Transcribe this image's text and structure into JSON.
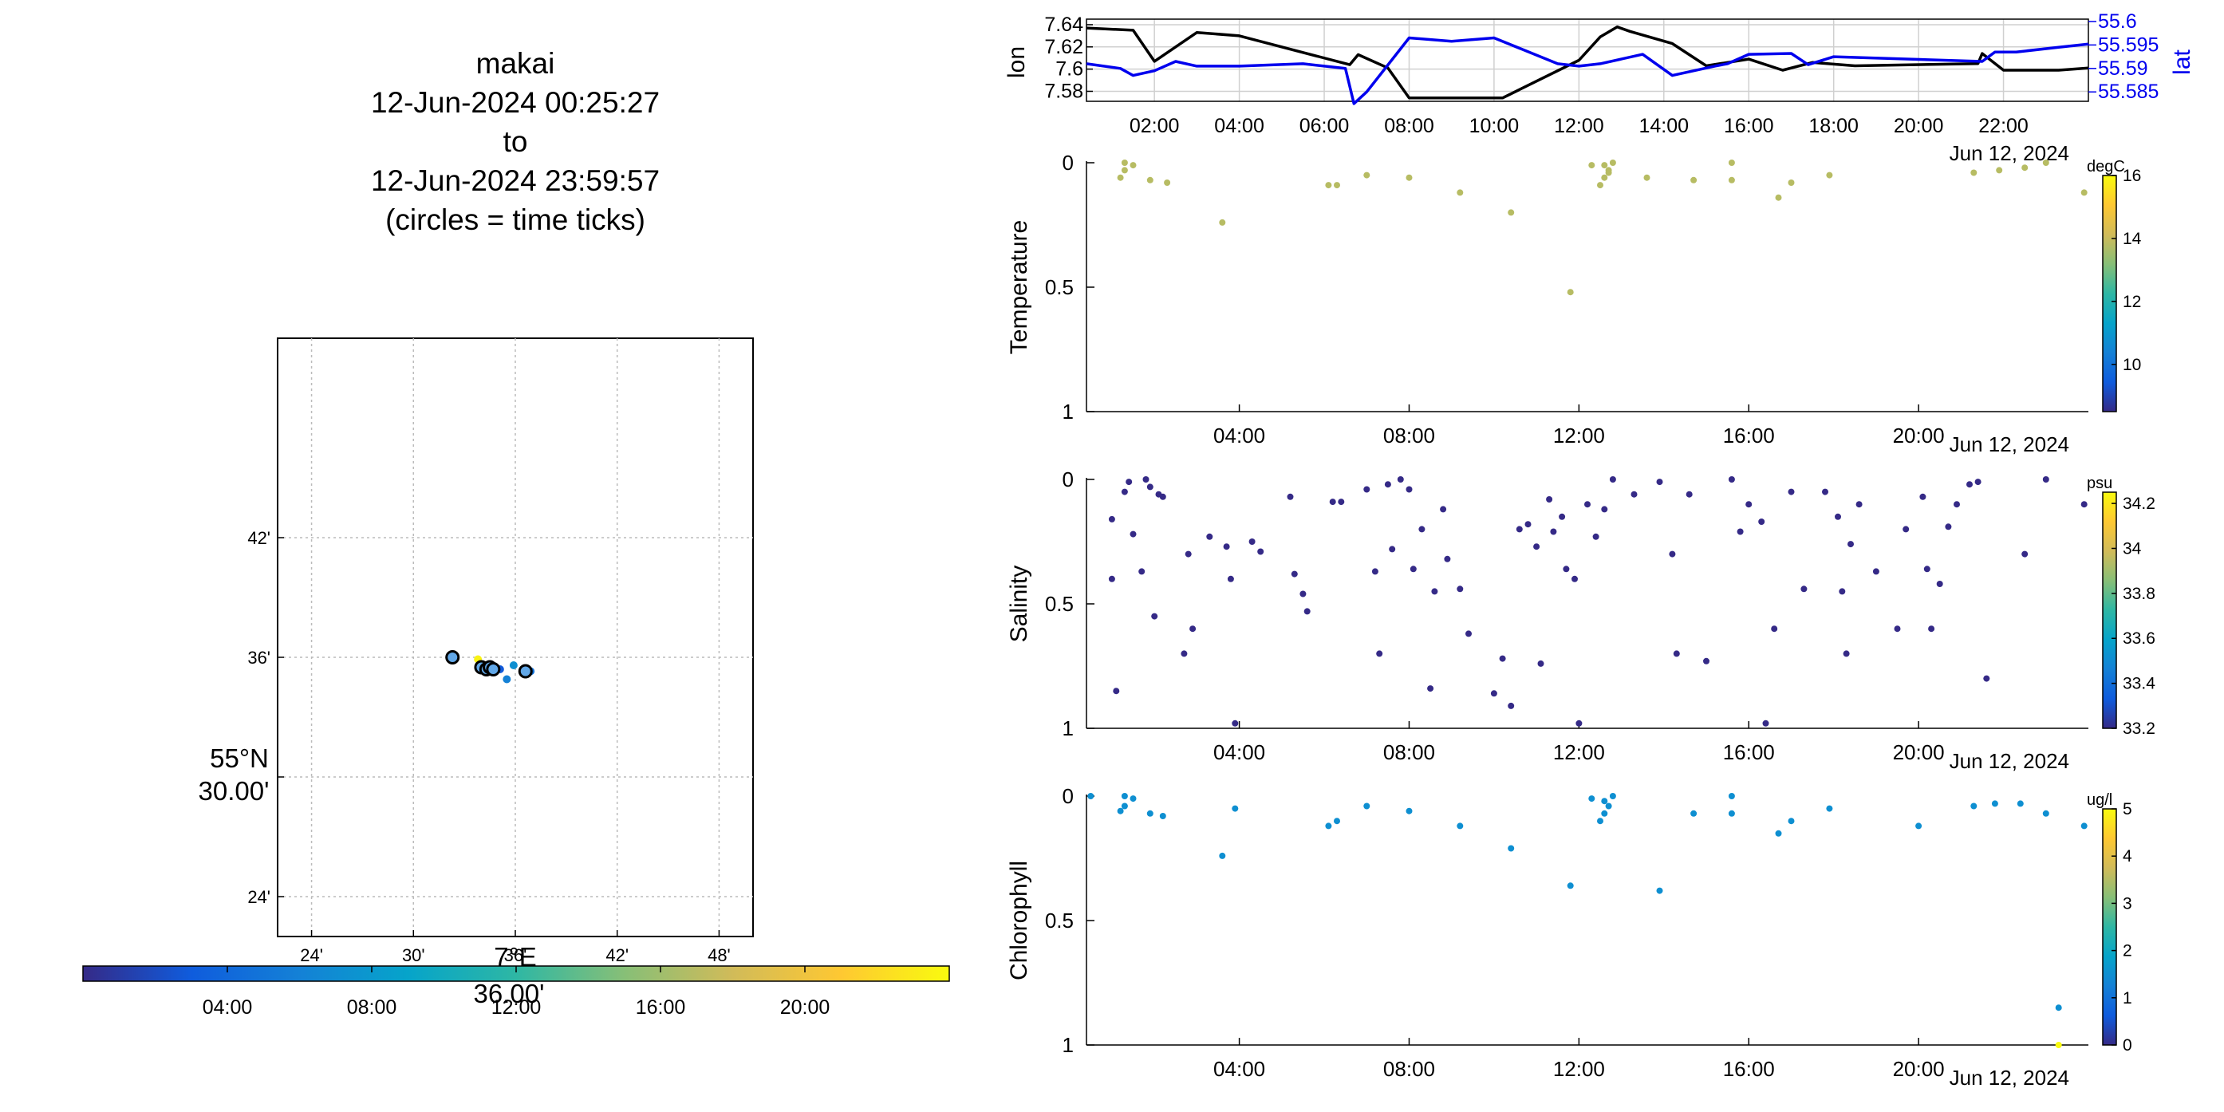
{
  "header": {
    "platform": "makai",
    "start": "12-Jun-2024 00:25:27",
    "to": "to",
    "end": "12-Jun-2024 23:59:57",
    "note": "(circles = time ticks)"
  },
  "colors": {
    "lon_line": "#000000",
    "lat_line": "#0000ee",
    "grid": "#c8c8c8",
    "parula": [
      "#352a87",
      "#0f5cdd",
      "#1481d6",
      "#06a4ca",
      "#2eb7a4",
      "#87bf77",
      "#d1bb59",
      "#fec832",
      "#f9fb0e"
    ]
  },
  "chart_data": [
    {
      "type": "scatter",
      "id": "map",
      "title": "",
      "lat_label": [
        "55°N",
        "30.00'"
      ],
      "lon_label": [
        "7°E",
        "36.00'"
      ],
      "x_ticks": [
        "24'",
        "30'",
        "36'",
        "42'",
        "48'"
      ],
      "y_ticks": [
        "42'",
        "36'",
        "24'"
      ],
      "grid": true,
      "xlim": [
        22,
        50
      ],
      "ylim": [
        22,
        52
      ],
      "track_points": [
        {
          "lon": 32.3,
          "lat": 36.0,
          "t": 0.42
        },
        {
          "lon": 33.8,
          "lat": 35.9,
          "t": 0.98
        },
        {
          "lon": 34.3,
          "lat": 35.6,
          "t": 0.5
        },
        {
          "lon": 34.6,
          "lat": 35.4,
          "t": 0.55
        },
        {
          "lon": 35.1,
          "lat": 35.4,
          "t": 0.12
        },
        {
          "lon": 35.9,
          "lat": 35.6,
          "t": 0.3
        },
        {
          "lon": 36.5,
          "lat": 35.4,
          "t": 0.35
        },
        {
          "lon": 36.9,
          "lat": 35.3,
          "t": 0.2
        },
        {
          "lon": 35.5,
          "lat": 34.9,
          "t": 0.25
        }
      ],
      "time_tick_circles": [
        {
          "lon": 32.3,
          "lat": 36.0
        },
        {
          "lon": 34.0,
          "lat": 35.5
        },
        {
          "lon": 34.3,
          "lat": 35.4
        },
        {
          "lon": 34.5,
          "lat": 35.5
        },
        {
          "lon": 34.7,
          "lat": 35.4
        },
        {
          "lon": 36.6,
          "lat": 35.3
        }
      ],
      "colorbar": {
        "ticks": [
          "04:00",
          "08:00",
          "12:00",
          "16:00",
          "20:00"
        ],
        "range_hours": [
          0,
          24
        ]
      }
    },
    {
      "type": "line",
      "id": "position",
      "xlabel": "",
      "date_label": "Jun 12, 2024",
      "x_ticks": [
        "02:00",
        "04:00",
        "06:00",
        "08:00",
        "10:00",
        "12:00",
        "14:00",
        "16:00",
        "18:00",
        "20:00",
        "22:00"
      ],
      "xlim_hours": [
        0.4,
        24.0
      ],
      "left_axis": {
        "label": "lon",
        "ticks": [
          "7.64",
          "7.62",
          "7.6",
          "7.58"
        ],
        "ylim": [
          7.571,
          7.645
        ]
      },
      "right_axis": {
        "label": "lat",
        "ticks": [
          "55.6",
          "55.595",
          "55.59",
          "55.585"
        ],
        "ylim": [
          55.583,
          55.6005
        ]
      },
      "series": [
        {
          "name": "lon",
          "axis": "left",
          "x": [
            0.4,
            1.5,
            2.0,
            3.0,
            4.0,
            6.6,
            6.8,
            7.5,
            8.0,
            10.2,
            12.0,
            12.5,
            12.9,
            13.2,
            14.2,
            15.0,
            16.0,
            16.8,
            17.5,
            18.5,
            21.4,
            21.5,
            22.0,
            23.3,
            24.0
          ],
          "y": [
            7.637,
            7.635,
            7.607,
            7.633,
            7.63,
            7.604,
            7.613,
            7.601,
            7.574,
            7.574,
            7.608,
            7.629,
            7.638,
            7.634,
            7.623,
            7.603,
            7.609,
            7.599,
            7.606,
            7.603,
            7.605,
            7.614,
            7.599,
            7.599,
            7.601
          ]
        },
        {
          "name": "lat",
          "axis": "right",
          "x": [
            0.4,
            1.2,
            1.5,
            2.0,
            2.5,
            3.0,
            4.0,
            5.5,
            6.5,
            6.7,
            7.0,
            8.0,
            9.0,
            10.0,
            11.5,
            12.0,
            12.5,
            13.5,
            14.2,
            15.2,
            15.5,
            16.0,
            17.0,
            17.4,
            18.0,
            21.5,
            21.8,
            22.3,
            23.3,
            24.0
          ],
          "y": [
            55.591,
            55.59,
            55.5885,
            55.5895,
            55.5915,
            55.5905,
            55.5905,
            55.591,
            55.59,
            55.5825,
            55.585,
            55.5965,
            55.5958,
            55.5965,
            55.591,
            55.5905,
            55.591,
            55.593,
            55.5885,
            55.5905,
            55.591,
            55.593,
            55.5932,
            55.5908,
            55.5925,
            55.5915,
            55.5935,
            55.5935,
            55.5945,
            55.5952
          ]
        }
      ],
      "grid": true
    },
    {
      "type": "scatter",
      "id": "temperature",
      "ylabel": "Temperature",
      "units": "degC",
      "date_label": "Jun 12, 2024",
      "x_ticks": [
        "04:00",
        "08:00",
        "12:00",
        "16:00",
        "20:00"
      ],
      "xlim_hours": [
        0.4,
        24.0
      ],
      "y_ticks": [
        "0",
        "0.5",
        "1"
      ],
      "ylim": [
        0,
        1
      ],
      "colorbar": {
        "ticks": [
          "16",
          "14",
          "12",
          "10"
        ],
        "clim": [
          8.5,
          16
        ]
      },
      "points": [
        [
          1.3,
          0.0,
          13.8
        ],
        [
          1.5,
          0.01,
          13.8
        ],
        [
          1.3,
          0.03,
          13.8
        ],
        [
          1.2,
          0.06,
          13.8
        ],
        [
          1.9,
          0.07,
          13.8
        ],
        [
          2.3,
          0.08,
          13.8
        ],
        [
          3.6,
          0.24,
          13.8
        ],
        [
          6.1,
          0.09,
          13.8
        ],
        [
          6.3,
          0.09,
          13.8
        ],
        [
          7.0,
          0.05,
          13.8
        ],
        [
          8.0,
          0.06,
          13.8
        ],
        [
          9.2,
          0.12,
          13.8
        ],
        [
          10.4,
          0.2,
          13.8
        ],
        [
          11.8,
          0.52,
          13.8
        ],
        [
          12.3,
          0.01,
          13.8
        ],
        [
          12.6,
          0.01,
          13.8
        ],
        [
          12.8,
          0.0,
          13.8
        ],
        [
          12.7,
          0.03,
          13.8
        ],
        [
          12.6,
          0.06,
          13.8
        ],
        [
          12.5,
          0.09,
          13.8
        ],
        [
          12.7,
          0.04,
          13.8
        ],
        [
          13.6,
          0.06,
          13.8
        ],
        [
          14.7,
          0.07,
          13.8
        ],
        [
          15.6,
          0.0,
          13.8
        ],
        [
          15.6,
          0.07,
          13.8
        ],
        [
          16.7,
          0.14,
          13.8
        ],
        [
          17.0,
          0.08,
          13.8
        ],
        [
          17.9,
          0.05,
          13.8
        ],
        [
          21.3,
          0.04,
          13.8
        ],
        [
          21.9,
          0.03,
          13.8
        ],
        [
          22.5,
          0.02,
          13.8
        ],
        [
          23.0,
          0.0,
          13.8
        ],
        [
          23.9,
          0.12,
          13.8
        ]
      ]
    },
    {
      "type": "scatter",
      "id": "salinity",
      "ylabel": "Salinity",
      "units": "psu",
      "date_label": "Jun 12, 2024",
      "x_ticks": [
        "04:00",
        "08:00",
        "12:00",
        "16:00",
        "20:00"
      ],
      "xlim_hours": [
        0.4,
        24.0
      ],
      "y_ticks": [
        "0",
        "0.5",
        "1"
      ],
      "ylim": [
        0,
        1
      ],
      "colorbar": {
        "ticks": [
          "34.2",
          "34",
          "33.8",
          "33.6",
          "33.4",
          "33.2"
        ],
        "clim": [
          33.2,
          34.25
        ]
      },
      "points": [
        [
          1.0,
          0.16,
          33.2
        ],
        [
          1.0,
          0.4,
          33.2
        ],
        [
          1.1,
          0.85,
          33.2
        ],
        [
          1.3,
          0.05,
          33.2
        ],
        [
          1.4,
          0.01,
          33.2
        ],
        [
          1.5,
          0.22,
          33.2
        ],
        [
          1.7,
          0.37,
          33.2
        ],
        [
          1.8,
          0.0,
          33.2
        ],
        [
          1.9,
          0.03,
          33.2
        ],
        [
          2.0,
          0.55,
          33.2
        ],
        [
          2.1,
          0.06,
          33.2
        ],
        [
          2.2,
          0.07,
          33.2
        ],
        [
          2.7,
          0.7,
          33.2
        ],
        [
          2.8,
          0.3,
          33.2
        ],
        [
          2.9,
          0.6,
          33.2
        ],
        [
          3.3,
          0.23,
          33.2
        ],
        [
          3.7,
          0.27,
          33.2
        ],
        [
          3.8,
          0.4,
          33.2
        ],
        [
          3.9,
          0.98,
          33.2
        ],
        [
          4.3,
          0.25,
          33.2
        ],
        [
          4.5,
          0.29,
          33.2
        ],
        [
          5.2,
          0.07,
          33.2
        ],
        [
          5.3,
          0.38,
          33.2
        ],
        [
          5.5,
          0.46,
          33.2
        ],
        [
          5.6,
          0.53,
          33.2
        ],
        [
          6.2,
          0.09,
          33.2
        ],
        [
          6.4,
          0.09,
          33.2
        ],
        [
          7.0,
          0.04,
          33.2
        ],
        [
          7.2,
          0.37,
          33.2
        ],
        [
          7.3,
          0.7,
          33.2
        ],
        [
          7.5,
          0.02,
          33.2
        ],
        [
          7.6,
          0.28,
          33.2
        ],
        [
          7.8,
          0.0,
          33.2
        ],
        [
          8.0,
          0.04,
          33.2
        ],
        [
          8.1,
          0.36,
          33.2
        ],
        [
          8.3,
          0.2,
          33.2
        ],
        [
          8.5,
          0.84,
          33.2
        ],
        [
          8.6,
          0.45,
          33.2
        ],
        [
          8.8,
          0.12,
          33.2
        ],
        [
          8.9,
          0.32,
          33.2
        ],
        [
          9.2,
          0.44,
          33.2
        ],
        [
          9.4,
          0.62,
          33.2
        ],
        [
          10.0,
          0.86,
          33.2
        ],
        [
          10.2,
          0.72,
          33.2
        ],
        [
          10.4,
          0.91,
          33.2
        ],
        [
          10.6,
          0.2,
          33.2
        ],
        [
          10.8,
          0.18,
          33.2
        ],
        [
          11.0,
          0.27,
          33.2
        ],
        [
          11.1,
          0.74,
          33.2
        ],
        [
          11.3,
          0.08,
          33.2
        ],
        [
          11.4,
          0.21,
          33.2
        ],
        [
          11.6,
          0.15,
          33.2
        ],
        [
          11.7,
          0.36,
          33.2
        ],
        [
          11.9,
          0.4,
          33.2
        ],
        [
          12.0,
          0.98,
          33.2
        ],
        [
          12.2,
          0.1,
          33.2
        ],
        [
          12.4,
          0.23,
          33.2
        ],
        [
          12.6,
          0.12,
          33.2
        ],
        [
          12.8,
          0.0,
          33.2
        ],
        [
          13.3,
          0.06,
          33.2
        ],
        [
          13.9,
          0.01,
          33.2
        ],
        [
          14.2,
          0.3,
          33.2
        ],
        [
          14.3,
          0.7,
          33.2
        ],
        [
          14.6,
          0.06,
          33.2
        ],
        [
          15.0,
          0.73,
          33.2
        ],
        [
          15.6,
          0.0,
          33.2
        ],
        [
          15.8,
          0.21,
          33.2
        ],
        [
          16.0,
          0.1,
          33.2
        ],
        [
          16.3,
          0.17,
          33.2
        ],
        [
          16.4,
          0.98,
          33.2
        ],
        [
          16.6,
          0.6,
          33.2
        ],
        [
          17.0,
          0.05,
          33.2
        ],
        [
          17.3,
          0.44,
          33.2
        ],
        [
          17.8,
          0.05,
          33.2
        ],
        [
          18.1,
          0.15,
          33.2
        ],
        [
          18.2,
          0.45,
          33.2
        ],
        [
          18.3,
          0.7,
          33.2
        ],
        [
          18.4,
          0.26,
          33.2
        ],
        [
          18.6,
          0.1,
          33.2
        ],
        [
          19.0,
          0.37,
          33.2
        ],
        [
          19.5,
          0.6,
          33.2
        ],
        [
          19.7,
          0.2,
          33.2
        ],
        [
          20.1,
          0.07,
          33.2
        ],
        [
          20.2,
          0.36,
          33.2
        ],
        [
          20.3,
          0.6,
          33.2
        ],
        [
          20.5,
          0.42,
          33.2
        ],
        [
          20.7,
          0.19,
          33.2
        ],
        [
          20.9,
          0.1,
          33.2
        ],
        [
          21.2,
          0.02,
          33.2
        ],
        [
          21.4,
          0.01,
          33.2
        ],
        [
          21.6,
          0.8,
          33.2
        ],
        [
          22.5,
          0.3,
          33.2
        ],
        [
          23.0,
          0.0,
          33.2
        ],
        [
          23.9,
          0.1,
          33.2
        ]
      ]
    },
    {
      "type": "scatter",
      "id": "chlorophyll",
      "ylabel": "Chlorophyll",
      "units": "ug/l",
      "date_label": "Jun 12, 2024",
      "x_ticks": [
        "04:00",
        "08:00",
        "12:00",
        "16:00",
        "20:00"
      ],
      "xlim_hours": [
        0.4,
        24.0
      ],
      "y_ticks": [
        "0",
        "0.5",
        "1"
      ],
      "ylim": [
        0,
        1
      ],
      "colorbar": {
        "ticks": [
          "5",
          "4",
          "3",
          "2",
          "1",
          "0"
        ],
        "clim": [
          0,
          5
        ]
      },
      "points": [
        [
          0.5,
          0.0,
          1.5
        ],
        [
          1.3,
          0.0,
          1.5
        ],
        [
          1.5,
          0.01,
          1.5
        ],
        [
          1.3,
          0.04,
          1.5
        ],
        [
          1.2,
          0.06,
          1.5
        ],
        [
          1.9,
          0.07,
          1.5
        ],
        [
          2.2,
          0.08,
          1.5
        ],
        [
          3.6,
          0.24,
          1.5
        ],
        [
          3.9,
          0.05,
          1.5
        ],
        [
          6.1,
          0.12,
          1.5
        ],
        [
          6.3,
          0.1,
          1.5
        ],
        [
          7.0,
          0.04,
          1.5
        ],
        [
          8.0,
          0.06,
          1.5
        ],
        [
          9.2,
          0.12,
          1.5
        ],
        [
          10.4,
          0.21,
          1.5
        ],
        [
          11.8,
          0.36,
          1.5
        ],
        [
          12.3,
          0.01,
          1.5
        ],
        [
          12.6,
          0.02,
          1.5
        ],
        [
          12.8,
          0.0,
          1.5
        ],
        [
          12.7,
          0.04,
          1.5
        ],
        [
          12.6,
          0.07,
          1.5
        ],
        [
          12.5,
          0.1,
          1.5
        ],
        [
          13.9,
          0.38,
          1.5
        ],
        [
          14.7,
          0.07,
          1.5
        ],
        [
          15.6,
          0.0,
          1.5
        ],
        [
          15.6,
          0.07,
          1.5
        ],
        [
          16.7,
          0.15,
          1.5
        ],
        [
          17.0,
          0.1,
          1.5
        ],
        [
          17.9,
          0.05,
          1.5
        ],
        [
          20.0,
          0.12,
          1.5
        ],
        [
          21.3,
          0.04,
          1.5
        ],
        [
          21.8,
          0.03,
          1.5
        ],
        [
          22.4,
          0.03,
          1.5
        ],
        [
          23.0,
          0.07,
          1.5
        ],
        [
          23.3,
          0.85,
          1.5
        ],
        [
          23.3,
          1.0,
          5.0
        ],
        [
          23.9,
          0.12,
          1.5
        ]
      ]
    }
  ]
}
